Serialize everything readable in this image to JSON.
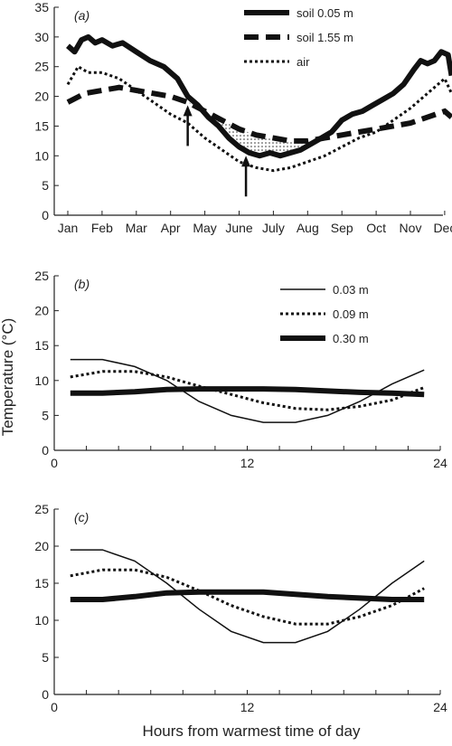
{
  "figure": {
    "ylabel": "Temperature (°C)",
    "xlabel": "Hours from warmest time of day"
  },
  "chart_data": [
    {
      "panel_label": "(a)",
      "type": "line",
      "xlabel": "",
      "ylabel": "",
      "x_categories": [
        "Jan",
        "Feb",
        "Mar",
        "Apr",
        "May",
        "June",
        "July",
        "Aug",
        "Sep",
        "Oct",
        "Nov",
        "Dec"
      ],
      "ylim": [
        0,
        35
      ],
      "yticks": [
        0,
        5,
        10,
        15,
        20,
        25,
        30,
        35
      ],
      "legend_position": "top-right",
      "shading": "dotted area between soil 0.05 m and soil 1.55 m from about mid-April to early August",
      "arrows": [
        {
          "x_month": 4.5,
          "points": "up",
          "y_tip": 18.5
        },
        {
          "x_month": 6.2,
          "points": "up",
          "y_tip": 10
        }
      ],
      "series": [
        {
          "name": "soil 0.05 m",
          "style": "thick-solid",
          "points": [
            [
              1.0,
              28.5
            ],
            [
              1.2,
              27.5
            ],
            [
              1.4,
              29.5
            ],
            [
              1.6,
              30
            ],
            [
              1.8,
              29
            ],
            [
              2.0,
              29.5
            ],
            [
              2.3,
              28.5
            ],
            [
              2.6,
              29
            ],
            [
              3.0,
              27.5
            ],
            [
              3.4,
              26
            ],
            [
              3.8,
              25
            ],
            [
              4.2,
              23
            ],
            [
              4.5,
              20
            ],
            [
              4.8,
              18.5
            ],
            [
              5.1,
              16.5
            ],
            [
              5.4,
              15
            ],
            [
              5.7,
              13
            ],
            [
              6.0,
              11.5
            ],
            [
              6.3,
              10.5
            ],
            [
              6.6,
              10
            ],
            [
              6.9,
              10.5
            ],
            [
              7.2,
              10
            ],
            [
              7.5,
              10.5
            ],
            [
              7.8,
              11
            ],
            [
              8.1,
              12
            ],
            [
              8.4,
              13
            ],
            [
              8.7,
              14
            ],
            [
              9.0,
              16
            ],
            [
              9.3,
              17
            ],
            [
              9.6,
              17.5
            ],
            [
              9.9,
              18.5
            ],
            [
              10.2,
              19.5
            ],
            [
              10.5,
              20.5
            ],
            [
              10.8,
              22
            ],
            [
              11.1,
              24.5
            ],
            [
              11.3,
              26
            ],
            [
              11.5,
              25.5
            ],
            [
              11.7,
              26
            ],
            [
              11.9,
              27.5
            ],
            [
              12.1,
              27
            ],
            [
              12.2,
              23.5
            ]
          ]
        },
        {
          "name": "soil 1.55 m",
          "style": "thick-dashed",
          "points": [
            [
              1.0,
              19
            ],
            [
              1.5,
              20.5
            ],
            [
              2.0,
              21
            ],
            [
              2.5,
              21.5
            ],
            [
              3.0,
              21
            ],
            [
              3.5,
              20.5
            ],
            [
              4.0,
              20
            ],
            [
              4.5,
              19
            ],
            [
              5.0,
              17.5
            ],
            [
              5.5,
              16
            ],
            [
              6.0,
              14.5
            ],
            [
              6.5,
              13.5
            ],
            [
              7.0,
              13
            ],
            [
              7.5,
              12.5
            ],
            [
              8.0,
              12.5
            ],
            [
              8.5,
              13
            ],
            [
              9.0,
              13.5
            ],
            [
              9.5,
              14
            ],
            [
              10.0,
              14.5
            ],
            [
              10.5,
              15
            ],
            [
              11.0,
              15.5
            ],
            [
              11.5,
              16.5
            ],
            [
              12.0,
              17.5
            ],
            [
              12.2,
              16.5
            ]
          ]
        },
        {
          "name": "air",
          "style": "dotted",
          "points": [
            [
              1.0,
              22
            ],
            [
              1.3,
              25
            ],
            [
              1.6,
              24
            ],
            [
              2.0,
              24
            ],
            [
              2.5,
              23
            ],
            [
              3.0,
              21
            ],
            [
              3.5,
              19
            ],
            [
              4.0,
              17
            ],
            [
              4.5,
              15.5
            ],
            [
              5.0,
              13
            ],
            [
              5.5,
              11
            ],
            [
              6.0,
              9
            ],
            [
              6.5,
              8
            ],
            [
              7.0,
              7.5
            ],
            [
              7.5,
              8
            ],
            [
              8.0,
              9
            ],
            [
              8.5,
              10
            ],
            [
              9.0,
              11.5
            ],
            [
              9.5,
              13
            ],
            [
              10.0,
              14
            ],
            [
              10.5,
              16
            ],
            [
              11.0,
              18
            ],
            [
              11.5,
              20.5
            ],
            [
              12.0,
              23
            ],
            [
              12.2,
              20.5
            ]
          ]
        }
      ]
    },
    {
      "panel_label": "(b)",
      "type": "line",
      "xlabel": "",
      "ylabel": "",
      "xlim": [
        0,
        24
      ],
      "xticks": [
        0,
        12,
        24
      ],
      "ylim": [
        0,
        25
      ],
      "yticks": [
        0,
        5,
        10,
        15,
        20,
        25
      ],
      "legend_position": "top-right",
      "series": [
        {
          "name": "0.03 m",
          "style": "thin-solid",
          "points": [
            [
              1,
              13
            ],
            [
              3,
              13
            ],
            [
              5,
              12
            ],
            [
              7,
              10
            ],
            [
              9,
              7
            ],
            [
              11,
              5
            ],
            [
              13,
              4
            ],
            [
              15,
              4
            ],
            [
              17,
              5
            ],
            [
              19,
              7
            ],
            [
              21,
              9.5
            ],
            [
              23,
              11.5
            ]
          ]
        },
        {
          "name": "0.09 m",
          "style": "dotted",
          "points": [
            [
              1,
              10.5
            ],
            [
              3,
              11.3
            ],
            [
              5,
              11.3
            ],
            [
              7,
              10.5
            ],
            [
              9,
              9.2
            ],
            [
              11,
              8
            ],
            [
              13,
              6.8
            ],
            [
              15,
              6
            ],
            [
              17,
              5.8
            ],
            [
              19,
              6.3
            ],
            [
              21,
              7.2
            ],
            [
              23,
              9
            ]
          ]
        },
        {
          "name": "0.30 m",
          "style": "thick-solid",
          "points": [
            [
              1,
              8.2
            ],
            [
              3,
              8.2
            ],
            [
              5,
              8.4
            ],
            [
              7,
              8.7
            ],
            [
              9,
              8.8
            ],
            [
              11,
              8.8
            ],
            [
              13,
              8.8
            ],
            [
              15,
              8.7
            ],
            [
              17,
              8.5
            ],
            [
              19,
              8.3
            ],
            [
              21,
              8.2
            ],
            [
              23,
              8
            ]
          ]
        }
      ]
    },
    {
      "panel_label": "(c)",
      "type": "line",
      "xlabel": "Hours from warmest time of day",
      "ylabel": "",
      "xlim": [
        0,
        24
      ],
      "xticks": [
        0,
        12,
        24
      ],
      "ylim": [
        0,
        25
      ],
      "yticks": [
        0,
        5,
        10,
        15,
        20,
        25
      ],
      "series": [
        {
          "name": "0.03 m",
          "style": "thin-solid",
          "points": [
            [
              1,
              19.5
            ],
            [
              3,
              19.5
            ],
            [
              5,
              18
            ],
            [
              7,
              15
            ],
            [
              9,
              11.5
            ],
            [
              11,
              8.5
            ],
            [
              13,
              7
            ],
            [
              15,
              7
            ],
            [
              17,
              8.5
            ],
            [
              19,
              11.5
            ],
            [
              21,
              15
            ],
            [
              23,
              18
            ]
          ]
        },
        {
          "name": "0.09 m",
          "style": "dotted",
          "points": [
            [
              1,
              16
            ],
            [
              3,
              16.8
            ],
            [
              5,
              16.8
            ],
            [
              7,
              15.8
            ],
            [
              9,
              14
            ],
            [
              11,
              12
            ],
            [
              13,
              10.5
            ],
            [
              15,
              9.5
            ],
            [
              17,
              9.5
            ],
            [
              19,
              10.5
            ],
            [
              21,
              12
            ],
            [
              23,
              14.3
            ]
          ]
        },
        {
          "name": "0.30 m",
          "style": "thick-solid",
          "points": [
            [
              1,
              12.8
            ],
            [
              3,
              12.8
            ],
            [
              5,
              13.2
            ],
            [
              7,
              13.7
            ],
            [
              9,
              13.8
            ],
            [
              11,
              13.8
            ],
            [
              13,
              13.8
            ],
            [
              15,
              13.5
            ],
            [
              17,
              13.2
            ],
            [
              19,
              13
            ],
            [
              21,
              12.8
            ],
            [
              23,
              12.8
            ]
          ]
        }
      ]
    }
  ]
}
